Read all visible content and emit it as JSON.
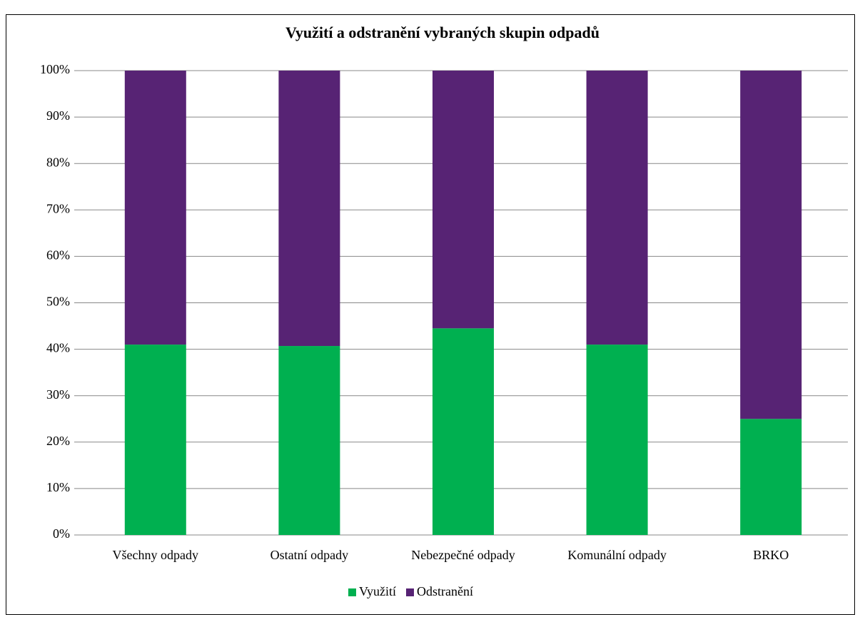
{
  "chart_data": {
    "type": "stacked_bar",
    "title": "Využití a odstranění vybraných skupin odpadů",
    "categories": [
      "Všechny odpady",
      "Ostatní odpady",
      "Nebezpečné odpady",
      "Komunální odpady",
      "BRKO"
    ],
    "series": [
      {
        "name": "Využití",
        "color": "#00b050",
        "values": [
          41,
          40.7,
          44.5,
          41,
          25
        ]
      },
      {
        "name": "Odstranění",
        "color": "#572374",
        "values": [
          59,
          59.3,
          55.5,
          59,
          75
        ]
      }
    ],
    "ylim": [
      0,
      100
    ],
    "yticks": [
      {
        "value": 0,
        "label": "0%"
      },
      {
        "value": 10,
        "label": "10%"
      },
      {
        "value": 20,
        "label": "20%"
      },
      {
        "value": 30,
        "label": "30%"
      },
      {
        "value": 40,
        "label": "40%"
      },
      {
        "value": 50,
        "label": "50%"
      },
      {
        "value": 60,
        "label": "60%"
      },
      {
        "value": 70,
        "label": "70%"
      },
      {
        "value": 80,
        "label": "80%"
      },
      {
        "value": 90,
        "label": "90%"
      },
      {
        "value": 100,
        "label": "100%"
      }
    ],
    "grid": true,
    "legend": "bottom"
  }
}
